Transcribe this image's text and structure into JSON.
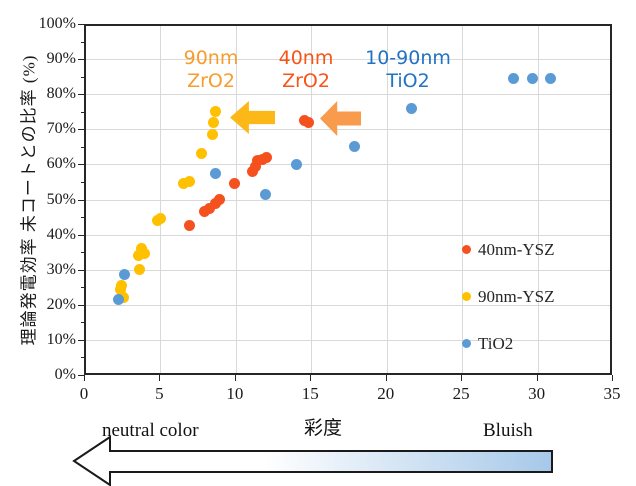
{
  "chart_data": {
    "type": "scatter",
    "title": "",
    "xlabel": "彩度",
    "ylabel": "理論発電効率 未コートとの比率 (%)",
    "xlim": [
      0,
      35
    ],
    "ylim": [
      0,
      100
    ],
    "grid": true,
    "legend_position": "inside-right",
    "x_ticks": [
      0,
      5,
      10,
      15,
      20,
      25,
      30,
      35
    ],
    "y_ticks": [
      "0%",
      "10%",
      "20%",
      "30%",
      "40%",
      "50%",
      "60%",
      "70%",
      "80%",
      "90%",
      "100%"
    ],
    "series": [
      {
        "name": "40nm-YSZ",
        "color": "#F4511E",
        "points": [
          [
            7.0,
            42.5
          ],
          [
            8.0,
            46.5
          ],
          [
            8.3,
            47.5
          ],
          [
            8.7,
            49
          ],
          [
            9.0,
            50
          ],
          [
            10.0,
            54.5
          ],
          [
            11.2,
            58
          ],
          [
            11.4,
            59.5
          ],
          [
            11.5,
            61
          ],
          [
            11.8,
            61.5
          ],
          [
            12.1,
            62
          ],
          [
            14.6,
            72.5
          ],
          [
            14.9,
            72
          ]
        ]
      },
      {
        "name": "90nm-YSZ",
        "color": "#FFC000",
        "points": [
          [
            2.4,
            24.5
          ],
          [
            2.5,
            25.5
          ],
          [
            2.6,
            22
          ],
          [
            3.6,
            34
          ],
          [
            3.7,
            30
          ],
          [
            3.8,
            36
          ],
          [
            4.0,
            34.5
          ],
          [
            4.9,
            44
          ],
          [
            5.1,
            44.5
          ],
          [
            6.6,
            54.5
          ],
          [
            7.0,
            55
          ],
          [
            7.8,
            63
          ],
          [
            8.5,
            68.5
          ],
          [
            8.6,
            72
          ],
          [
            8.7,
            75
          ]
        ]
      },
      {
        "name": "TiO2",
        "color": "#5B9BD5",
        "points": [
          [
            2.3,
            21.5
          ],
          [
            2.7,
            28.5
          ],
          [
            8.7,
            57.5
          ],
          [
            12.0,
            51.5
          ],
          [
            14.1,
            60
          ],
          [
            17.9,
            65
          ],
          [
            21.7,
            76
          ],
          [
            28.5,
            84.5
          ],
          [
            29.7,
            84.5
          ],
          [
            30.9,
            84.5
          ]
        ]
      }
    ]
  },
  "annotations": {
    "zro2_90": {
      "line1": "90nm",
      "line2": "ZrO2",
      "color": "#F79D2E"
    },
    "zro2_40": {
      "line1": "40nm",
      "line2": "ZrO2",
      "color": "#F85416"
    },
    "tio2": {
      "line1": "10-90nm",
      "line2": "TiO2",
      "color": "#2273C3"
    }
  },
  "arrows": {
    "yellow_color": "#FBB817",
    "orange_color": "#F89B4D",
    "gradient_start": "#FFFFFF",
    "gradient_end": "#A6C8E9"
  },
  "footer": {
    "left_label": "neutral color",
    "axis_title": "彩度",
    "right_label": "Bluish"
  }
}
